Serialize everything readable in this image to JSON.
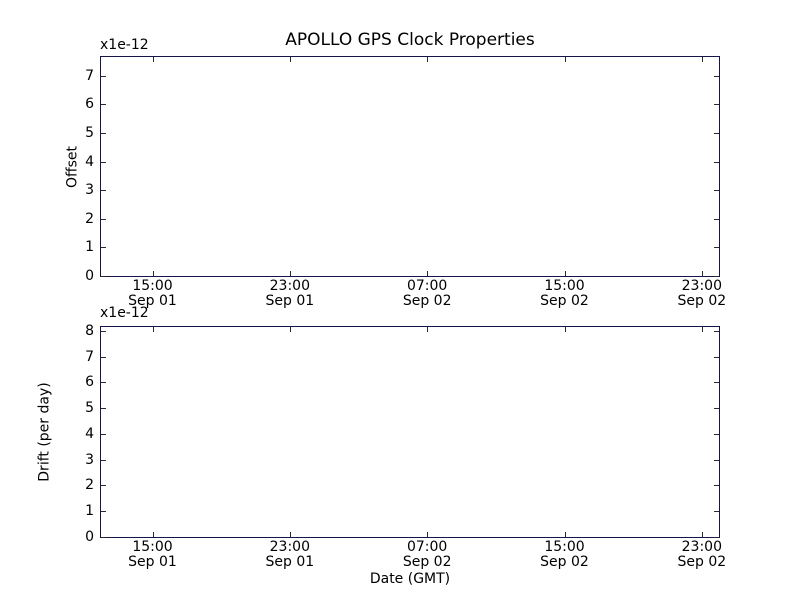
{
  "title": "APOLLO GPS Clock Properties",
  "chart_data": [
    {
      "type": "line",
      "name": "offset-subplot",
      "title": "APOLLO GPS Clock Properties",
      "ylabel": "Offset",
      "y_offset_text": "x1e-12",
      "ylim": [
        0,
        7.66
      ],
      "yticks": [
        "0",
        "1",
        "2",
        "3",
        "4",
        "5",
        "6",
        "7"
      ],
      "ytick_values": [
        0,
        1,
        2,
        3,
        4,
        5,
        6,
        7
      ],
      "xlim_hours_from_sep01_0000": [
        12,
        48
      ],
      "xticks": [
        {
          "hour": 15,
          "time": "15:00",
          "date": "Sep 01"
        },
        {
          "hour": 23,
          "time": "23:00",
          "date": "Sep 01"
        },
        {
          "hour": 31,
          "time": "07:00",
          "date": "Sep 02"
        },
        {
          "hour": 39,
          "time": "15:00",
          "date": "Sep 02"
        },
        {
          "hour": 47,
          "time": "23:00",
          "date": "Sep 02"
        }
      ],
      "series": [],
      "grid": false,
      "legend": null
    },
    {
      "type": "line",
      "name": "drift-subplot",
      "ylabel": "Drift (per day)",
      "xlabel": "Date (GMT)",
      "y_offset_text": "x1e-12",
      "ylim": [
        0,
        8.15
      ],
      "yticks": [
        "0",
        "1",
        "2",
        "3",
        "4",
        "5",
        "6",
        "7",
        "8"
      ],
      "ytick_values": [
        0,
        1,
        2,
        3,
        4,
        5,
        6,
        7,
        8
      ],
      "xlim_hours_from_sep01_0000": [
        12,
        48
      ],
      "xticks": [
        {
          "hour": 15,
          "time": "15:00",
          "date": "Sep 01"
        },
        {
          "hour": 23,
          "time": "23:00",
          "date": "Sep 01"
        },
        {
          "hour": 31,
          "time": "07:00",
          "date": "Sep 02"
        },
        {
          "hour": 39,
          "time": "15:00",
          "date": "Sep 02"
        },
        {
          "hour": 47,
          "time": "23:00",
          "date": "Sep 02"
        }
      ],
      "series": [],
      "grid": false,
      "legend": null
    }
  ]
}
